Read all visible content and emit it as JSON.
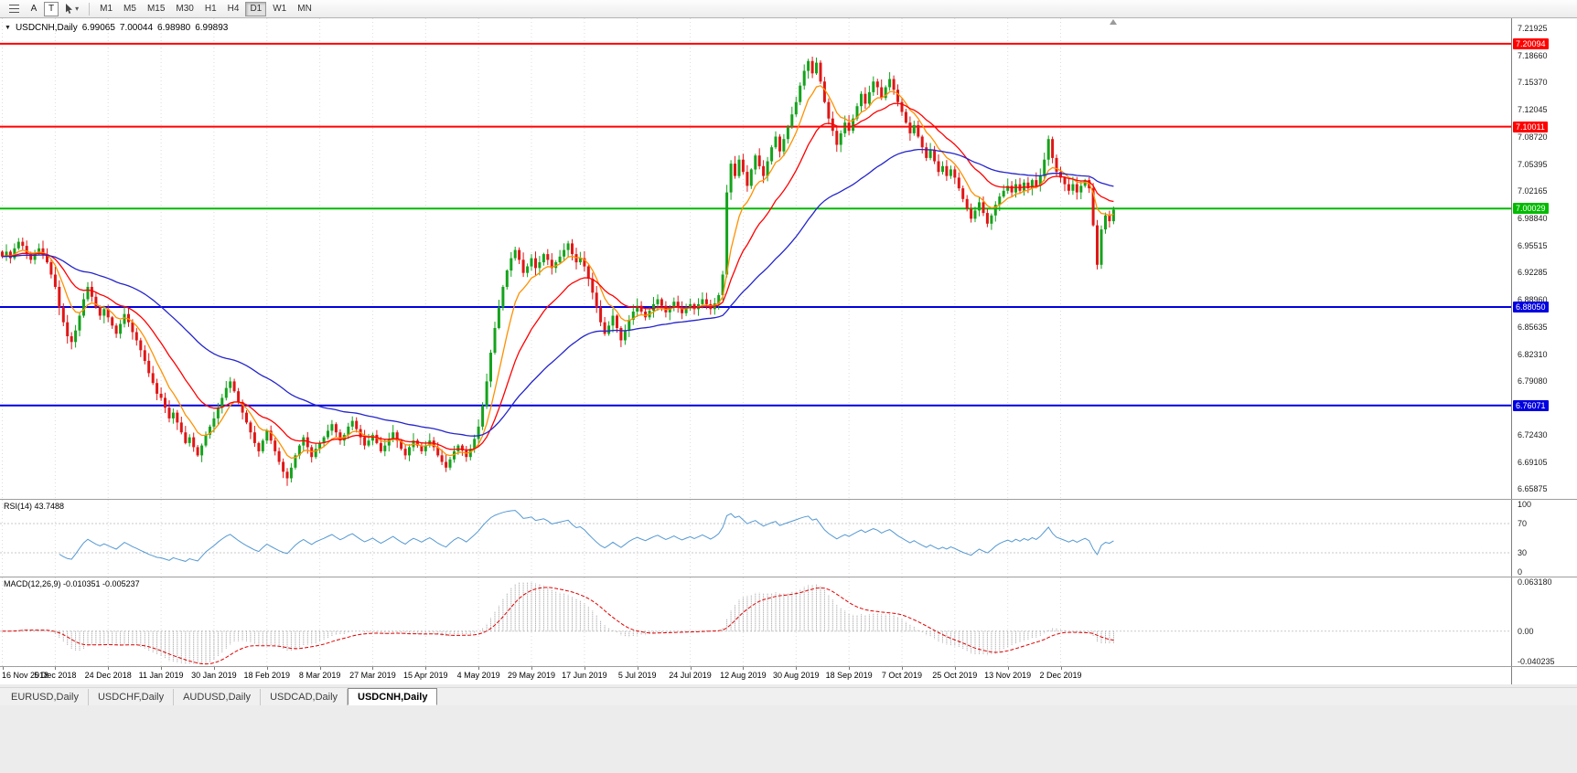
{
  "toolbar": {
    "a_label": "A",
    "t_label": "T",
    "timeframes": [
      "M1",
      "M5",
      "M15",
      "M30",
      "H1",
      "H4",
      "D1",
      "W1",
      "MN"
    ],
    "active_timeframe": "D1"
  },
  "icons": {
    "one_click_arrow": "▼",
    "chevron_down": "▾"
  },
  "chart": {
    "symbol_period": "USDCNH,Daily",
    "open": "6.99065",
    "high": "7.00044",
    "low": "6.98980",
    "close": "6.99893"
  },
  "colors": {
    "bull": "#14a31c",
    "bear": "#e01616",
    "rsi": "#5599d2",
    "macd_hist": "#9a9a9a",
    "macd_signal": "#e00000",
    "grid": "#dcdcdc",
    "ma": {
      "fast": "#ff9000",
      "medium": "#ff0000",
      "slow": "#2424cc"
    }
  },
  "chart_data": {
    "type": "candlestick",
    "symbol": "USDCNH",
    "period": "Daily",
    "first_open": 6.948,
    "label_every": 13,
    "x_labels": [
      "16 Nov 2018",
      "5 Dec 2018",
      "24 Dec 2018",
      "11 Jan 2019",
      "30 Jan 2019",
      "18 Feb 2019",
      "8 Mar 2019",
      "27 Mar 2019",
      "15 Apr 2019",
      "4 May 2019",
      "29 May 2019",
      "17 Jun 2019",
      "5 Jul 2019",
      "24 Jul 2019",
      "12 Aug 2019",
      "30 Aug 2019",
      "18 Sep 2019",
      "7 Oct 2019",
      "25 Oct 2019",
      "13 Nov 2019",
      "2 Dec 2019"
    ],
    "closes": [
      6.942,
      6.948,
      6.94,
      6.952,
      6.96,
      6.955,
      6.945,
      6.938,
      6.946,
      6.952,
      6.944,
      6.935,
      6.92,
      6.905,
      6.88,
      6.862,
      6.845,
      6.838,
      6.852,
      6.87,
      6.89,
      6.905,
      6.893,
      6.88,
      6.87,
      6.878,
      6.868,
      6.858,
      6.848,
      6.86,
      6.872,
      6.862,
      6.85,
      6.84,
      6.828,
      6.815,
      6.8,
      6.788,
      6.775,
      6.77,
      6.758,
      6.745,
      6.752,
      6.74,
      6.728,
      6.715,
      6.722,
      6.71,
      6.7,
      6.712,
      6.725,
      6.735,
      6.745,
      6.758,
      6.77,
      6.782,
      6.79,
      6.778,
      6.765,
      6.752,
      6.74,
      6.728,
      6.715,
      6.705,
      6.718,
      6.73,
      6.718,
      6.705,
      6.692,
      6.68,
      6.672,
      6.685,
      6.7,
      6.712,
      6.722,
      6.71,
      6.698,
      6.708,
      6.715,
      6.722,
      6.73,
      6.738,
      6.728,
      6.718,
      6.725,
      6.735,
      6.742,
      6.732,
      6.722,
      6.712,
      6.718,
      6.725,
      6.715,
      6.705,
      6.712,
      6.72,
      6.728,
      6.718,
      6.708,
      6.7,
      6.71,
      6.718,
      6.712,
      6.705,
      6.712,
      6.718,
      6.71,
      6.7,
      6.692,
      6.685,
      6.695,
      6.705,
      6.712,
      6.706,
      6.698,
      6.708,
      6.72,
      6.735,
      6.76,
      6.79,
      6.825,
      6.855,
      6.88,
      6.905,
      6.925,
      6.94,
      6.95,
      6.938,
      6.922,
      6.93,
      6.94,
      6.928,
      6.935,
      6.945,
      6.938,
      6.928,
      6.935,
      6.942,
      6.95,
      6.958,
      6.945,
      6.935,
      6.94,
      6.93,
      6.915,
      6.898,
      6.88,
      6.862,
      6.848,
      6.858,
      6.87,
      6.855,
      6.84,
      6.852,
      6.865,
      6.875,
      6.882,
      6.875,
      6.868,
      6.876,
      6.884,
      6.89,
      6.882,
      6.874,
      6.88,
      6.887,
      6.88,
      6.873,
      6.879,
      6.884,
      6.878,
      6.884,
      6.89,
      6.884,
      6.878,
      6.885,
      6.895,
      6.92,
      7.02,
      7.055,
      7.04,
      7.06,
      7.045,
      7.028,
      7.048,
      7.065,
      7.052,
      7.04,
      7.058,
      7.075,
      7.088,
      7.07,
      7.085,
      7.1,
      7.115,
      7.13,
      7.15,
      7.168,
      7.18,
      7.165,
      7.178,
      7.155,
      7.13,
      7.11,
      7.095,
      7.078,
      7.092,
      7.105,
      7.095,
      7.11,
      7.125,
      7.14,
      7.128,
      7.142,
      7.155,
      7.148,
      7.135,
      7.148,
      7.158,
      7.145,
      7.13,
      7.118,
      7.105,
      7.092,
      7.102,
      7.088,
      7.075,
      7.062,
      7.072,
      7.058,
      7.045,
      7.052,
      7.04,
      7.048,
      7.038,
      7.025,
      7.012,
      7.0,
      6.988,
      6.998,
      7.008,
      6.995,
      6.982,
      6.992,
      7.005,
      7.015,
      7.022,
      7.028,
      7.02,
      7.03,
      7.022,
      7.032,
      7.025,
      7.035,
      7.028,
      7.04,
      7.06,
      7.085,
      7.062,
      7.045,
      7.038,
      7.03,
      7.022,
      7.03,
      7.02,
      7.028,
      7.035,
      7.025,
      6.98,
      6.932,
      6.975,
      6.992,
      6.985,
      6.999
    ],
    "price_axis": {
      "min": 6.647,
      "max": 7.232,
      "ticks": [
        "7.21925",
        "7.18660",
        "7.15370",
        "7.12045",
        "7.08720",
        "7.05395",
        "7.02165",
        "6.98840",
        "6.95515",
        "6.92285",
        "6.88960",
        "6.85635",
        "6.82310",
        "6.79080",
        "6.75755",
        "6.72430",
        "6.69105",
        "6.65875"
      ]
    },
    "hlines": [
      {
        "price": 7.20094,
        "label": "7.20094",
        "color": "#ff0000"
      },
      {
        "price": 7.10011,
        "label": "7.10011",
        "color": "#ff0000"
      },
      {
        "price": 7.00029,
        "label": "7.00029",
        "color": "#00bb00"
      },
      {
        "price": 6.8805,
        "label": "6.88050",
        "color": "#0000e0"
      },
      {
        "price": 6.76071,
        "label": "6.76071",
        "color": "#0000e0"
      }
    ],
    "rsi": {
      "label": "RSI(14) 43.7488",
      "period": 14,
      "value": 43.7488,
      "ticks": [
        100,
        70,
        30,
        0
      ],
      "levels": [
        70,
        30
      ]
    },
    "macd": {
      "label": "MACD(12,26,9) -0.010351 -0.005237",
      "fast": 12,
      "slow": 26,
      "signal_period": 9,
      "main_value": -0.010351,
      "signal_value": -0.005237,
      "axis": {
        "max": 0.06318,
        "min": -0.040235,
        "ticks": [
          {
            "label": "0.063180",
            "value": 0.06318
          },
          {
            "label": "0.00",
            "value": 0
          },
          {
            "label": "-0.040235",
            "value": -0.040235
          }
        ]
      }
    }
  },
  "tabbar": {
    "tabs": [
      "EURUSD,Daily",
      "USDCHF,Daily",
      "AUDUSD,Daily",
      "USDCAD,Daily",
      "USDCNH,Daily"
    ],
    "active": "USDCNH,Daily"
  }
}
